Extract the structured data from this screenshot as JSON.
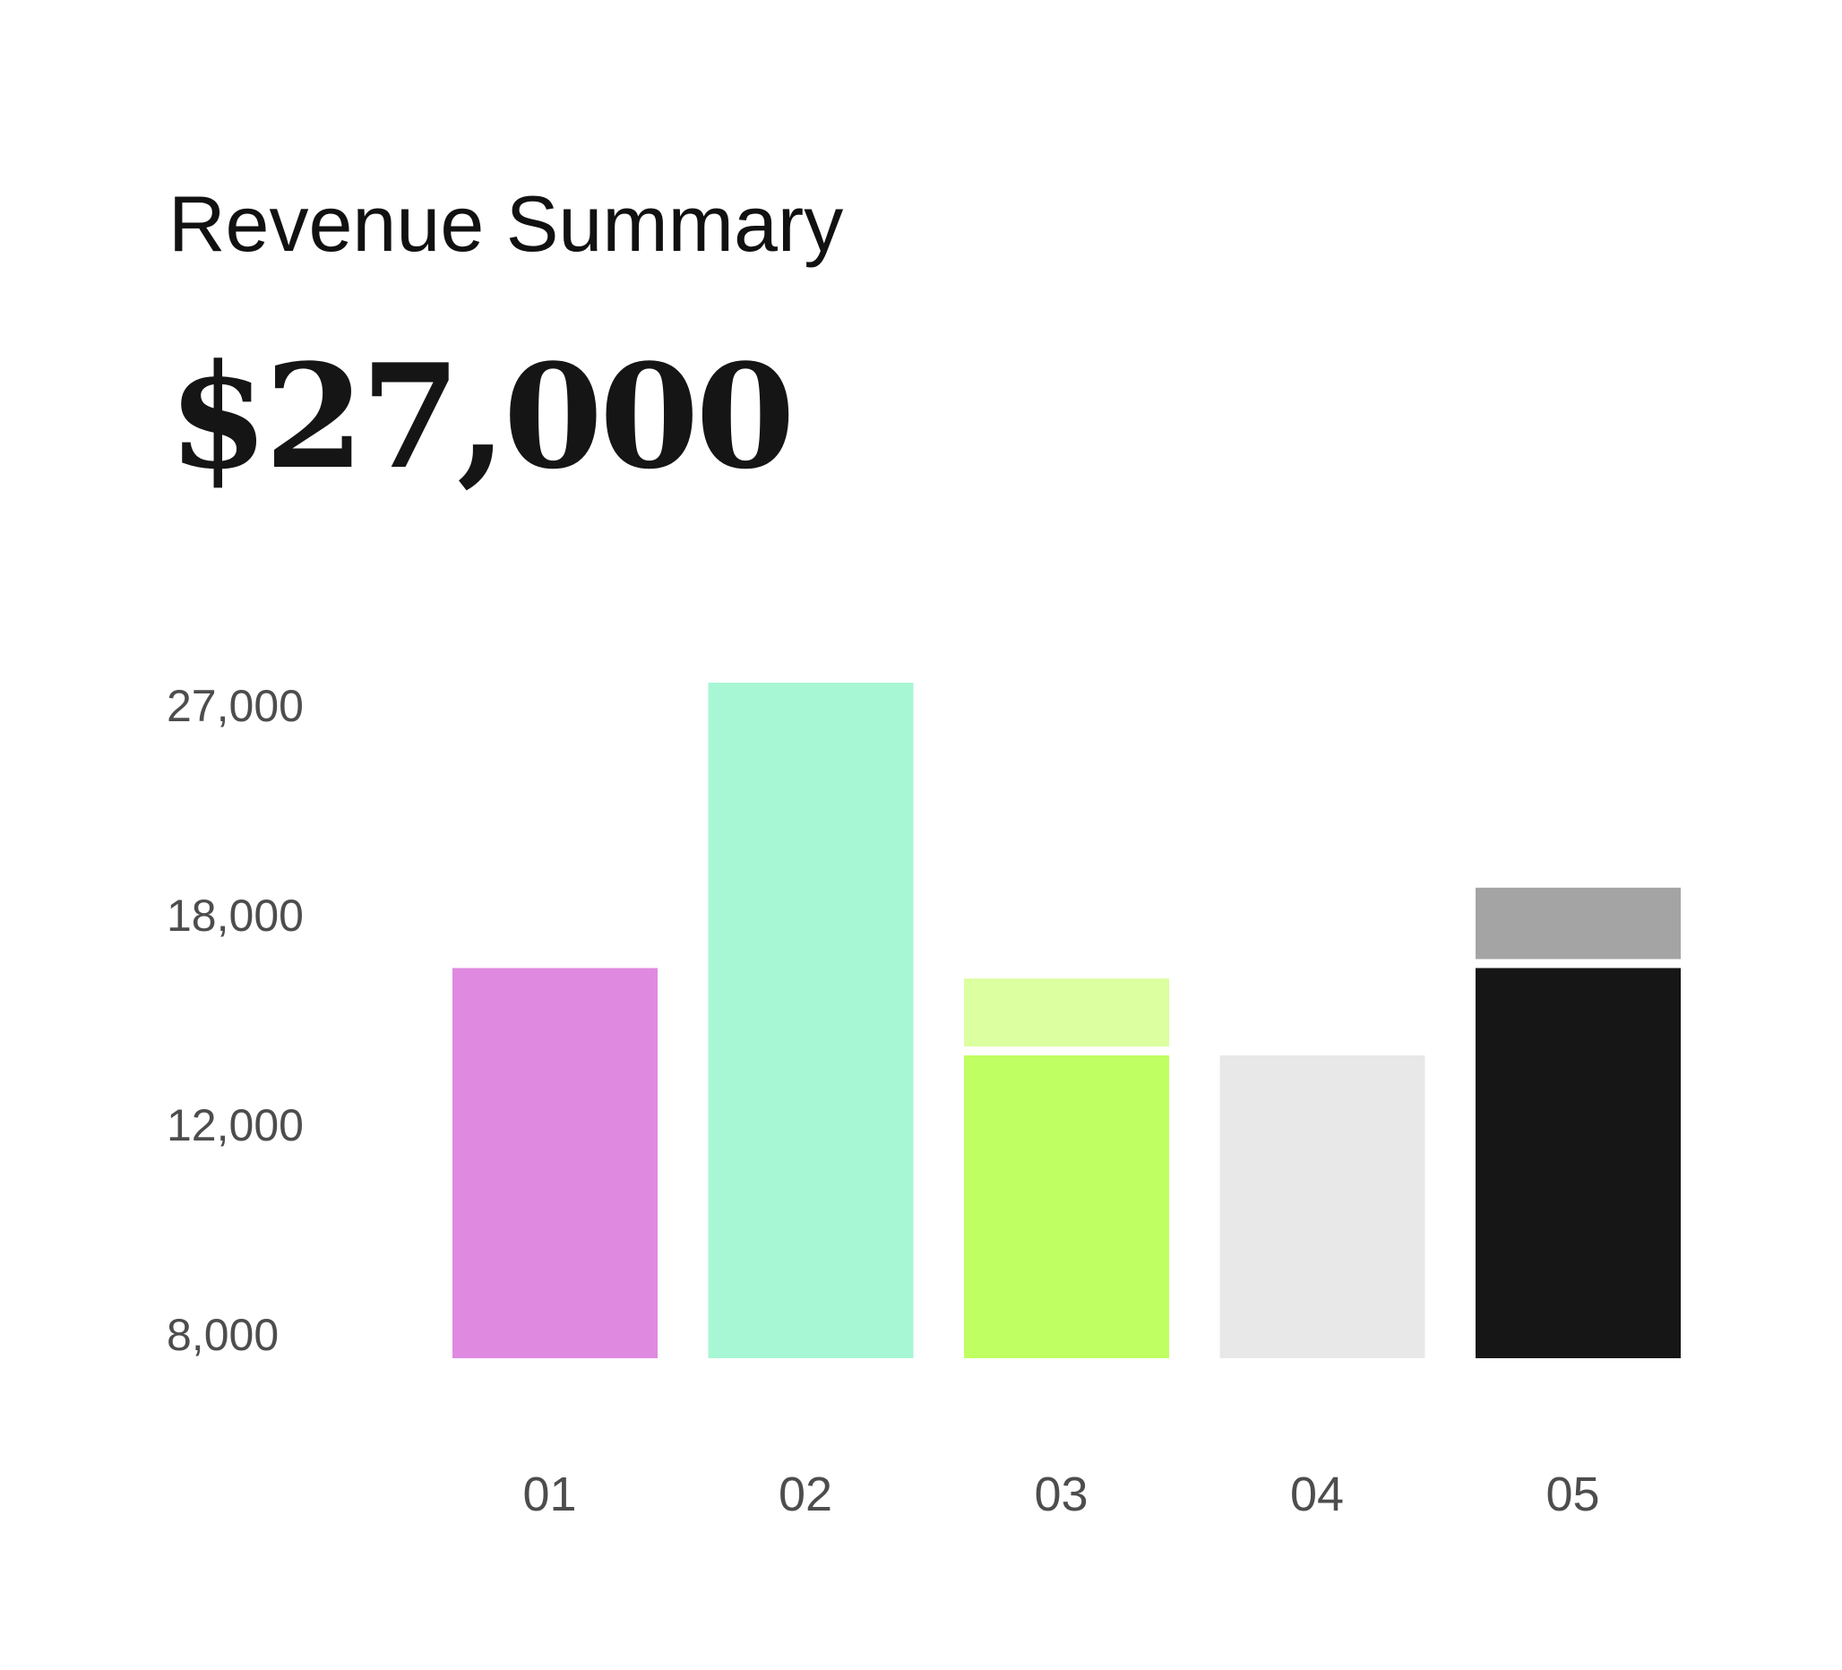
{
  "header": {
    "title": "Revenue Summary",
    "total": "$27,000"
  },
  "chart_data": {
    "type": "bar",
    "stacked": true,
    "categories": [
      "01",
      "02",
      "03",
      "04",
      "05"
    ],
    "y_ticks": [
      {
        "value": 27000,
        "label": "27,000"
      },
      {
        "value": 18000,
        "label": "18,000"
      },
      {
        "value": 12000,
        "label": "12,000"
      },
      {
        "value": 8000,
        "label": "8,000"
      }
    ],
    "y_scale": "nonlinear, interpolated between labeled ticks",
    "grid": false,
    "legend": "none",
    "bars": [
      {
        "category": "01",
        "segments": [
          {
            "value": 16500,
            "color": "#df8ae0"
          }
        ]
      },
      {
        "category": "02",
        "segments": [
          {
            "value": 28000,
            "color": "#a7f7d4"
          }
        ]
      },
      {
        "category": "03",
        "segments": [
          {
            "value": 14000,
            "color": "#c0ff62"
          },
          {
            "value": 16200,
            "color": "#dcffa0"
          }
        ]
      },
      {
        "category": "04",
        "segments": [
          {
            "value": 14000,
            "color": "#e8e8e8"
          }
        ]
      },
      {
        "category": "05",
        "segments": [
          {
            "value": 16500,
            "color": "#161616"
          },
          {
            "value": 19200,
            "color": "#a4a4a4"
          }
        ]
      }
    ]
  }
}
